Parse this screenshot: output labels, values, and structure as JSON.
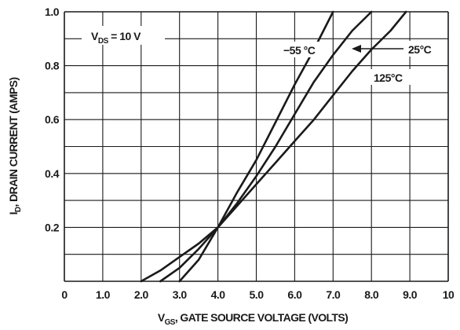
{
  "chart_data": {
    "type": "line",
    "xlabel": "V_GS, GATE SOURCE VOLTAGE (VOLTS)",
    "ylabel": "I_D, DRAIN CURRENT (AMPS)",
    "xlim": [
      0,
      10
    ],
    "ylim": [
      0,
      1.0
    ],
    "x_ticks": [
      "0",
      "1.0",
      "2.0",
      "3.0",
      "4.0",
      "5.0",
      "6.0",
      "7.0",
      "8.0",
      "9.0",
      "10"
    ],
    "y_ticks": [
      "0.2",
      "0.4",
      "0.6",
      "0.8",
      "1.0"
    ],
    "grid_x": [
      0,
      1,
      2,
      3,
      4,
      5,
      6,
      7,
      8,
      9,
      10
    ],
    "grid_y": [
      0,
      0.1,
      0.2,
      0.3,
      0.4,
      0.5,
      0.6,
      0.7,
      0.8,
      0.9,
      1.0
    ],
    "grid": true,
    "series": [
      {
        "name": "−55 °C",
        "points": [
          [
            3.0,
            0.0
          ],
          [
            3.5,
            0.08
          ],
          [
            4.0,
            0.2
          ],
          [
            4.5,
            0.33
          ],
          [
            5.0,
            0.45
          ],
          [
            5.5,
            0.59
          ],
          [
            6.0,
            0.73
          ],
          [
            6.5,
            0.86
          ],
          [
            7.0,
            1.0
          ]
        ]
      },
      {
        "name": "25°C",
        "points": [
          [
            2.5,
            0.0
          ],
          [
            3.0,
            0.05
          ],
          [
            3.5,
            0.12
          ],
          [
            4.0,
            0.2
          ],
          [
            4.5,
            0.29
          ],
          [
            5.0,
            0.39
          ],
          [
            5.5,
            0.5
          ],
          [
            6.0,
            0.62
          ],
          [
            6.5,
            0.74
          ],
          [
            7.0,
            0.84
          ],
          [
            7.5,
            0.93
          ],
          [
            8.0,
            1.0
          ]
        ]
      },
      {
        "name": "125°C",
        "points": [
          [
            2.0,
            0.0
          ],
          [
            2.5,
            0.04
          ],
          [
            3.0,
            0.09
          ],
          [
            3.5,
            0.14
          ],
          [
            4.0,
            0.2
          ],
          [
            4.5,
            0.28
          ],
          [
            5.0,
            0.36
          ],
          [
            5.5,
            0.44
          ],
          [
            6.0,
            0.52
          ],
          [
            6.5,
            0.6
          ],
          [
            7.0,
            0.69
          ],
          [
            7.5,
            0.78
          ],
          [
            8.0,
            0.86
          ],
          [
            8.5,
            0.93
          ],
          [
            8.9,
            1.0
          ]
        ]
      }
    ],
    "annotations": [
      "V_DS = 10 V",
      "−55 °C",
      "25°C",
      "125°C"
    ]
  },
  "labels": {
    "xlabel_V": "V",
    "xlabel_sub": "GS",
    "xlabel_rest": ", GATE SOURCE VOLTAGE (VOLTS)",
    "ylabel_I": "I",
    "ylabel_sub": "D",
    "ylabel_rest": ", DRAIN CURRENT (AMPS)",
    "vds_V": "V",
    "vds_sub": "DS",
    "vds_rest": " = 10 V",
    "label_m55": "−55 °C",
    "label_25": "25°C",
    "label_125": "125°C"
  }
}
